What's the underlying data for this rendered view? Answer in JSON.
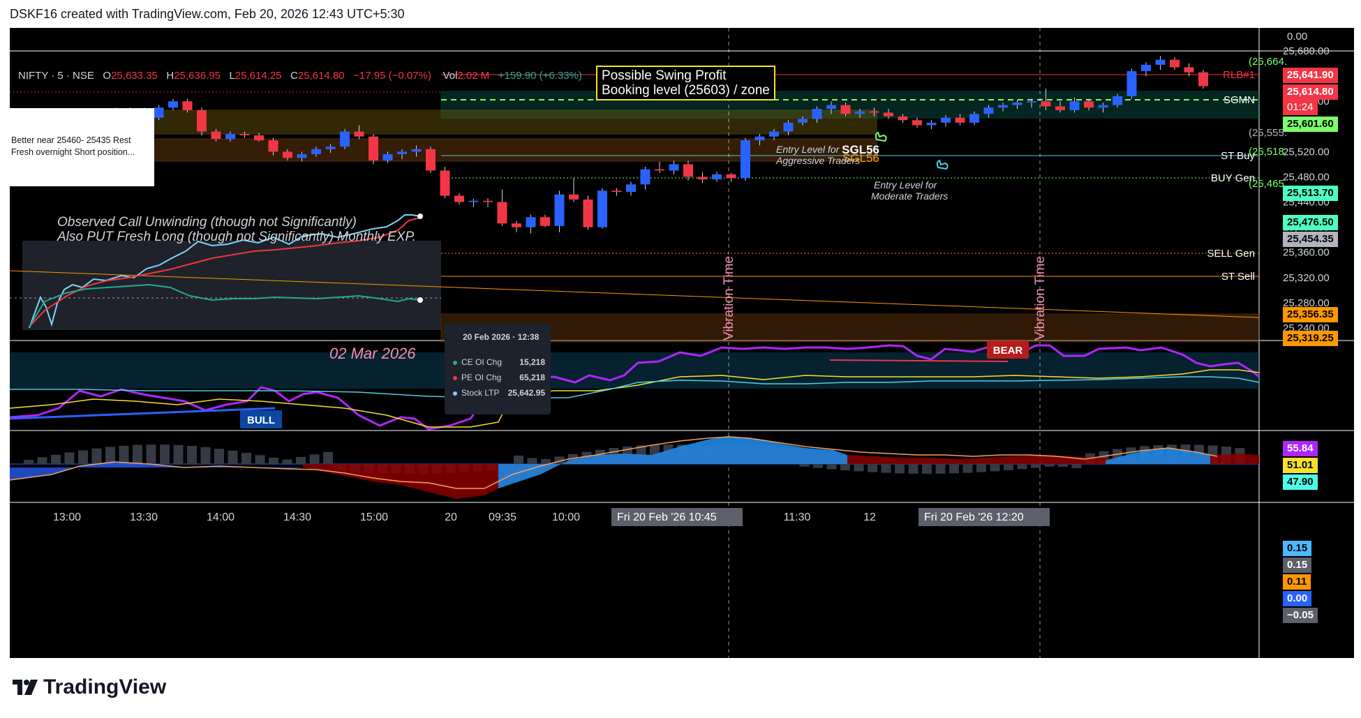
{
  "header": {
    "created_line": "DSKF16 created with TradingView.com, Feb 20, 2026 12:43 UTC+5:30"
  },
  "brand": {
    "name": "TradingView"
  },
  "legend": {
    "symbol": "NIFTY · 5 · NSE",
    "o_label": "O",
    "o_value": "25,633.35",
    "h_label": "H",
    "h_value": "25,636.95",
    "l_label": "L",
    "l_value": "25,614.25",
    "c_label": "C",
    "c_value": "25,614.80",
    "change": "−17.95 (−0.07%)",
    "vol_label": "Vol",
    "vol_value": "2.02 M",
    "vol_change": "+159.90 (+6.33%)"
  },
  "annotations": {
    "swing_line1": "Possible Swing Profit",
    "swing_line2": "Booking level (25603) / zone",
    "note_line1": "Better near 25460- 25435 Rest",
    "note_line2": "Fresh overnight Short position...",
    "obs_line1": "Observed Call Unwinding (though not Significantly)",
    "obs_line2": "Also PUT Fresh Long (though not Significantly) Monthly EXP.",
    "entry_aggr_1": "Entry Level for",
    "entry_aggr_2": "Aggressive Traders",
    "entry_mod_1": "Entry Level for",
    "entry_mod_2": "Moderate Traders",
    "sgl56_upper": "SGL56",
    "sgl56_lower": "SGL56",
    "vibration_1": "Vibration Time",
    "vibration_2": "Vibration Time",
    "bear": "BEAR",
    "bull": "BULL",
    "inset_date": "02 Mar 2026"
  },
  "tooltip": {
    "title": "20 Feb 2026 · 12:38",
    "rows": [
      {
        "label": "CE OI Chg",
        "value": "15,218",
        "color": "#22ab94"
      },
      {
        "label": "PE OI Chg",
        "value": "65,218",
        "color": "#f23645"
      },
      {
        "label": "Stock LTP",
        "value": "25,642.95",
        "color": "#7fd3f5"
      }
    ]
  },
  "levels": {
    "rlb_label": "RLB#1",
    "sgmn_label": "SGMN",
    "stbuy_label": "ST Buy",
    "buygen_label": "BUY Gen",
    "sellgen_label": "SELL Gen",
    "stsell_label": "ST Sell",
    "rlb_value": "25,614.80",
    "sgmn_value": "25,601.60",
    "stbuy_value": "25,513.70",
    "buygen_value": "25,476.50",
    "sellgen_value": "25,356.35",
    "stsell_value": "25,319.25",
    "last_price": "25,641.90",
    "countdown": "01:24",
    "grey_value": "25,454.35",
    "green_top": "(25,664.",
    "grey_paren": "(25,555.",
    "green_stbuy": "(25,518.",
    "green_buy": "(25,465."
  },
  "colors": {
    "up_candle": "#2962ff",
    "down_candle": "#f23645",
    "rsi": "#b026ff",
    "yellow": "#f7e12d",
    "cyan": "#4dd0e1",
    "green_level": "#7cff6b",
    "orange_level": "#ff9800"
  },
  "indicator_values": {
    "rsi_a": "55.84",
    "rsi_b": "51.01",
    "rsi_c": "47.90",
    "macd_a": "0.15",
    "macd_b": "0.15",
    "macd_c": "0.11",
    "macd_d": "0.00",
    "macd_e": "−0.05"
  },
  "time_axis": {
    "current_1": "Fri 20 Feb '26   10:45",
    "current_2": "Fri 20 Feb '26   12:20"
  },
  "chart_data": {
    "type": "candlestick",
    "title": "",
    "y_axis": {
      "ticks": [
        25680,
        25640,
        25600,
        25560,
        25520,
        25480,
        25440,
        25400,
        25360,
        25320,
        25280,
        25240
      ],
      "extra_tick": "0.00"
    },
    "x_axis": {
      "ticks": [
        "13:00",
        "13:30",
        "14:00",
        "14:30",
        "15:00",
        "20",
        "09:35",
        "10:00",
        "11:30",
        "12",
        "13:00"
      ]
    },
    "candles": [
      [
        25540,
        25548,
        25538,
        25545
      ],
      [
        25545,
        25552,
        25541,
        25549
      ],
      [
        25549,
        25556,
        25546,
        25552
      ],
      [
        25552,
        25556,
        25548,
        25550
      ],
      [
        25550,
        25590,
        25548,
        25586
      ],
      [
        25586,
        25590,
        25578,
        25582
      ],
      [
        25582,
        25590,
        25570,
        25574
      ],
      [
        25574,
        25594,
        25570,
        25590
      ],
      [
        25590,
        25604,
        25586,
        25600
      ],
      [
        25600,
        25604,
        25582,
        25586
      ],
      [
        25586,
        25590,
        25546,
        25552
      ],
      [
        25552,
        25556,
        25536,
        25540
      ],
      [
        25540,
        25552,
        25536,
        25548
      ],
      [
        25548,
        25552,
        25542,
        25546
      ],
      [
        25546,
        25550,
        25536,
        25538
      ],
      [
        25538,
        25542,
        25514,
        25520
      ],
      [
        25520,
        25524,
        25506,
        25510
      ],
      [
        25510,
        25520,
        25504,
        25516
      ],
      [
        25516,
        25528,
        25512,
        25524
      ],
      [
        25524,
        25532,
        25518,
        25528
      ],
      [
        25528,
        25556,
        25524,
        25552
      ],
      [
        25552,
        25562,
        25540,
        25544
      ],
      [
        25544,
        25548,
        25500,
        25506
      ],
      [
        25506,
        25520,
        25502,
        25516
      ],
      [
        25516,
        25524,
        25508,
        25520
      ],
      [
        25520,
        25530,
        25512,
        25524
      ],
      [
        25524,
        25528,
        25486,
        25490
      ],
      [
        25490,
        25496,
        25446,
        25450
      ],
      [
        25450,
        25454,
        25436,
        25440
      ],
      [
        25440,
        25445,
        25432,
        25442
      ],
      [
        25442,
        25446,
        25432,
        25440
      ],
      [
        25440,
        25460,
        25402,
        25406
      ],
      [
        25406,
        25410,
        25392,
        25400
      ],
      [
        25400,
        25420,
        25390,
        25416
      ],
      [
        25416,
        25420,
        25400,
        25402
      ],
      [
        25402,
        25458,
        25392,
        25452
      ],
      [
        25452,
        25478,
        25440,
        25444
      ],
      [
        25444,
        25450,
        25396,
        25400
      ],
      [
        25400,
        25462,
        25398,
        25458
      ],
      [
        25458,
        25462,
        25450,
        25456
      ],
      [
        25456,
        25472,
        25450,
        25468
      ],
      [
        25468,
        25496,
        25460,
        25492
      ],
      [
        25492,
        25504,
        25486,
        25490
      ],
      [
        25490,
        25506,
        25484,
        25500
      ],
      [
        25500,
        25506,
        25474,
        25480
      ],
      [
        25480,
        25488,
        25470,
        25476
      ],
      [
        25476,
        25488,
        25472,
        25484
      ],
      [
        25484,
        25486,
        25472,
        25478
      ],
      [
        25478,
        25542,
        25474,
        25538
      ],
      [
        25538,
        25548,
        25530,
        25544
      ],
      [
        25544,
        25556,
        25538,
        25552
      ],
      [
        25552,
        25570,
        25546,
        25566
      ],
      [
        25566,
        25576,
        25562,
        25572
      ],
      [
        25572,
        25592,
        25566,
        25588
      ],
      [
        25588,
        25600,
        25580,
        25594
      ],
      [
        25594,
        25598,
        25576,
        25580
      ],
      [
        25580,
        25588,
        25574,
        25584
      ],
      [
        25584,
        25590,
        25576,
        25582
      ],
      [
        25582,
        25588,
        25572,
        25576
      ],
      [
        25576,
        25580,
        25566,
        25570
      ],
      [
        25570,
        25574,
        25558,
        25562
      ],
      [
        25562,
        25570,
        25556,
        25566
      ],
      [
        25566,
        25578,
        25560,
        25574
      ],
      [
        25574,
        25580,
        25562,
        25566
      ],
      [
        25566,
        25584,
        25562,
        25580
      ],
      [
        25580,
        25594,
        25574,
        25590
      ],
      [
        25590,
        25598,
        25584,
        25594
      ],
      [
        25594,
        25602,
        25588,
        25598
      ],
      [
        25598,
        25604,
        25590,
        25600
      ],
      [
        25600,
        25620,
        25586,
        25592
      ],
      [
        25592,
        25600,
        25582,
        25586
      ],
      [
        25586,
        25606,
        25582,
        25600
      ],
      [
        25600,
        25604,
        25586,
        25590
      ],
      [
        25590,
        25598,
        25582,
        25594
      ],
      [
        25594,
        25612,
        25590,
        25608
      ],
      [
        25608,
        25652,
        25604,
        25648
      ],
      [
        25648,
        25662,
        25640,
        25658
      ],
      [
        25658,
        25672,
        25650,
        25666
      ],
      [
        25666,
        25670,
        25650,
        25654
      ],
      [
        25654,
        25660,
        25640,
        25646
      ],
      [
        25646,
        25650,
        25620,
        25624
      ]
    ]
  }
}
